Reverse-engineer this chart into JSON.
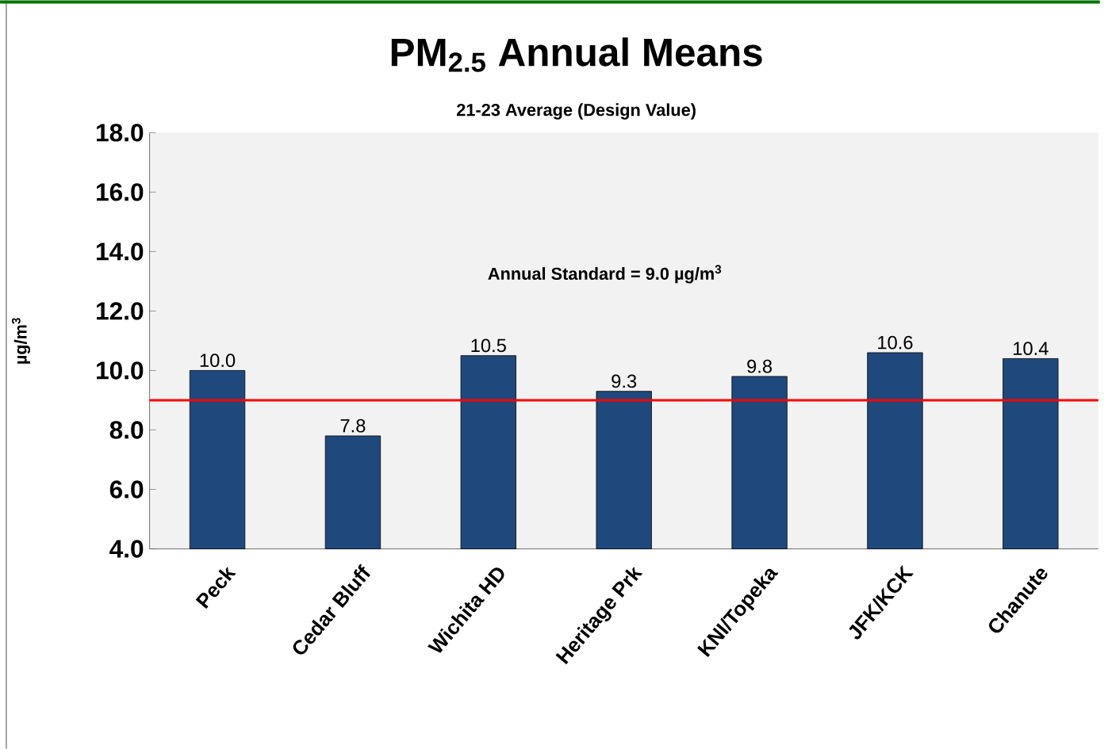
{
  "chart_data": {
    "type": "bar",
    "title": "PM$_{2.5}$ Annual Means",
    "subtitle": "21-23 Average (Design Value)",
    "ylabel": "µg/m$^{3}$",
    "categories": [
      "Peck",
      "Cedar Bluff",
      "Wichita HD",
      "Heritage Prk",
      "KNI/Topeka",
      "JFK/KCK",
      "Chanute"
    ],
    "values": [
      10.0,
      7.8,
      10.5,
      9.3,
      9.8,
      10.6,
      10.4
    ],
    "value_labels": [
      "10.0",
      "7.8",
      "10.5",
      "9.3",
      "9.8",
      "10.6",
      "10.4"
    ],
    "color": "#1f497d",
    "ylim": [
      4,
      18
    ],
    "yticks": [
      {
        "value": 4,
        "label": "4.0"
      },
      {
        "value": 6,
        "label": "6.0"
      },
      {
        "value": 8,
        "label": "8.0"
      },
      {
        "value": 10,
        "label": "10.0"
      },
      {
        "value": 12,
        "label": "12.0"
      },
      {
        "value": 14,
        "label": "14.0"
      },
      {
        "value": 16,
        "label": "16.0"
      },
      {
        "value": 18,
        "label": "18.0"
      }
    ],
    "annotations": [
      "Annual Standard = 9.0 µg/m$^{3}$"
    ],
    "ref_lines": [
      {
        "axis": "y",
        "value": 9.0,
        "color": "#ff0000"
      }
    ]
  }
}
